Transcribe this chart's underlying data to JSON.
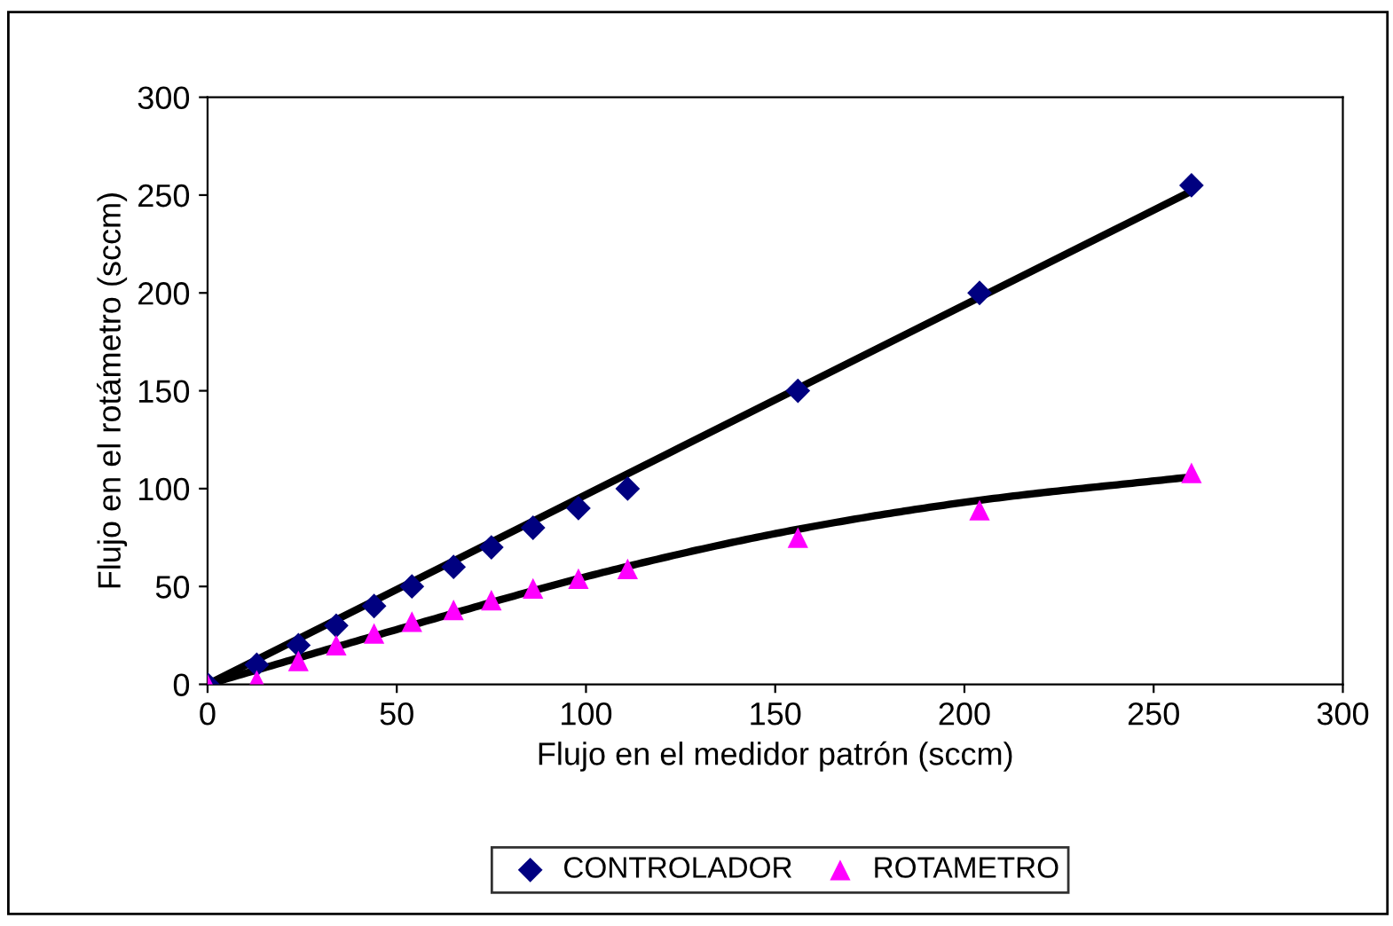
{
  "chart_data": {
    "type": "scatter",
    "xlabel": "Flujo en el medidor patrón (sccm)",
    "ylabel": "Flujo en el rotámetro (sccm)",
    "xlim": [
      0,
      300
    ],
    "ylim": [
      0,
      300
    ],
    "xticks": [
      0,
      50,
      100,
      150,
      200,
      250,
      300
    ],
    "yticks": [
      0,
      50,
      100,
      150,
      200,
      250,
      300
    ],
    "grid": false,
    "legend": "bottom",
    "series": [
      {
        "name": "CONTROLADOR",
        "color": "#000080",
        "marker": "diamond",
        "x": [
          0,
          13,
          24,
          34,
          44,
          54,
          65,
          75,
          86,
          98,
          111,
          156,
          204,
          260
        ],
        "values": [
          0,
          10,
          20,
          30,
          40,
          50,
          60,
          70,
          80,
          90,
          100,
          150,
          200,
          255
        ]
      },
      {
        "name": "ROTAMETRO",
        "color": "#ff00ff",
        "marker": "triangle",
        "x": [
          0,
          13,
          24,
          34,
          44,
          54,
          65,
          75,
          86,
          98,
          111,
          156,
          204,
          260
        ],
        "values": [
          0,
          2,
          12,
          20,
          26,
          32,
          38,
          43,
          49,
          54,
          59,
          75,
          89,
          108
        ]
      },
      {
        "type": "line",
        "color": "#000000",
        "marker": "none",
        "line_style": "solid",
        "x": [
          0,
          260
        ],
        "values": [
          0,
          252
        ]
      },
      {
        "type": "line",
        "color": "#000000",
        "marker": "none",
        "line_style": "solid",
        "x": [
          0,
          50,
          100,
          150,
          200,
          260
        ],
        "values": [
          0,
          28,
          55,
          77,
          93,
          106
        ]
      }
    ]
  }
}
